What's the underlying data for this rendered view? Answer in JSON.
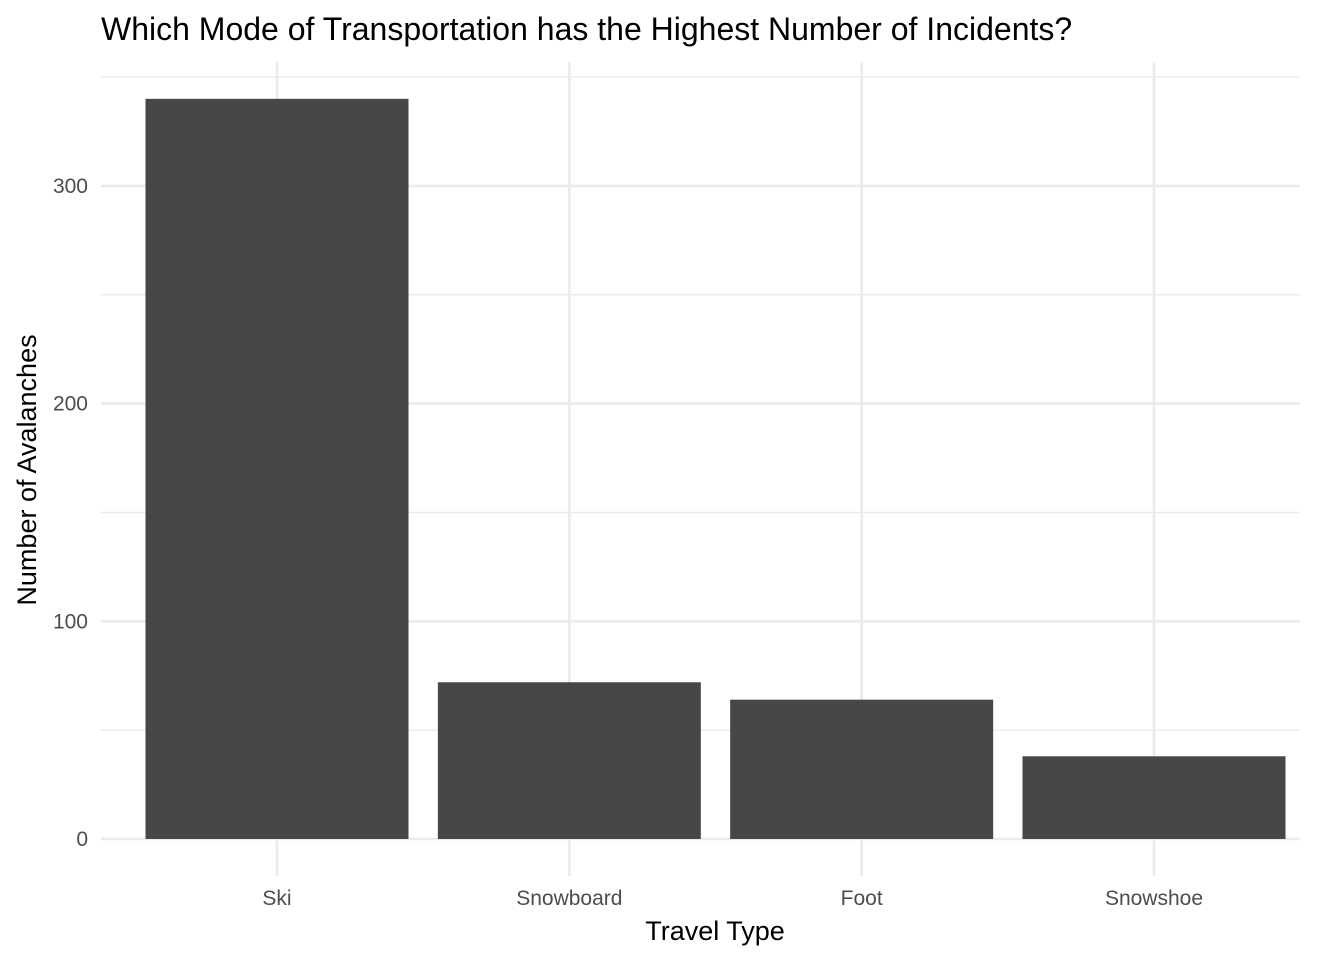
{
  "chart_data": {
    "type": "bar",
    "title": "Which Mode of Transportation has the Highest Number of Incidents?",
    "xlabel": "Travel Type",
    "ylabel": "Number of Avalanches",
    "categories": [
      "Ski",
      "Snowboard",
      "Foot",
      "Snowshoe"
    ],
    "values": [
      340,
      72,
      64,
      38
    ],
    "ylim": [
      0,
      350
    ],
    "y_ticks": [
      0,
      100,
      200,
      300
    ],
    "y_minor_ticks": [
      50,
      150,
      250
    ],
    "grid": true,
    "legend": "none",
    "colors": {
      "bar": "#474747",
      "grid": "#ebebeb",
      "background": "#ffffff"
    }
  }
}
